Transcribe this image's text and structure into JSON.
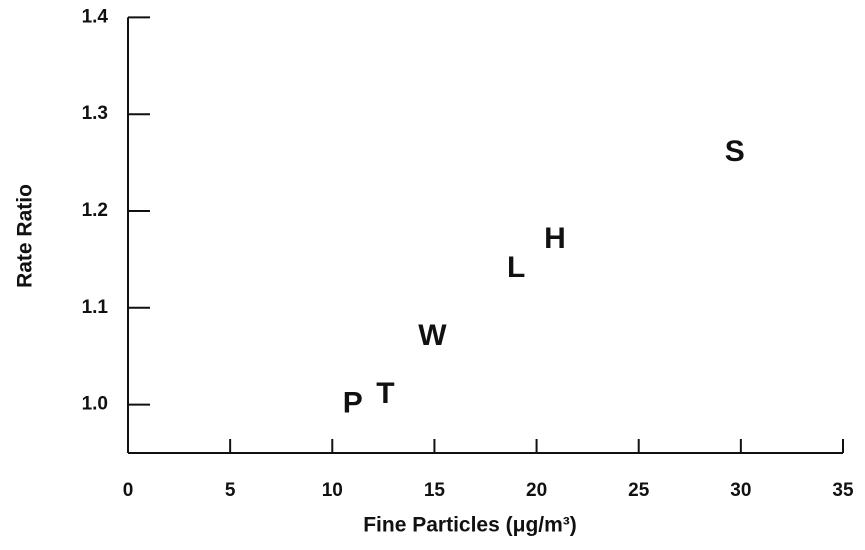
{
  "chart_data": {
    "type": "scatter",
    "x_label": "Fine Particles (μg/m³)",
    "y_label": "Rate Ratio",
    "labels": [
      "P",
      "T",
      "W",
      "L",
      "H",
      "S"
    ],
    "x": [
      11.0,
      12.6,
      14.9,
      19.0,
      20.9,
      29.7
    ],
    "values": [
      1.0,
      1.01,
      1.07,
      1.14,
      1.17,
      1.26
    ],
    "color": "#111111",
    "xlim": [
      0,
      35
    ],
    "xticks": [
      0,
      5,
      10,
      15,
      20,
      25,
      30,
      35
    ],
    "ylim": [
      0.95,
      1.4
    ],
    "yticks": [
      {
        "value": 1,
        "label": "1.0"
      },
      1.1,
      1.2,
      1.3,
      1.4
    ],
    "grid": false
  }
}
